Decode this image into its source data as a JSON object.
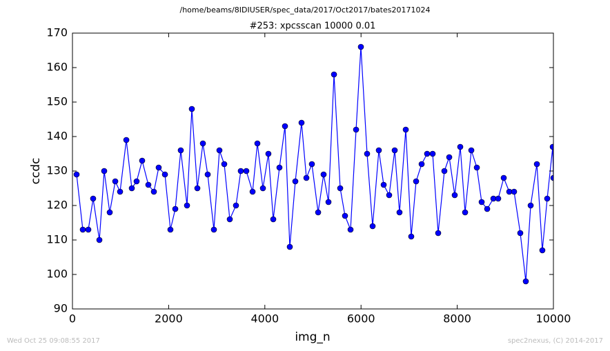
{
  "chart_data": {
    "type": "line",
    "suptitle": "/home/beams/8IDIUSER/spec_data/2017/Oct2017/bates20171024",
    "title": "#253: xpcsscan 10000 0.01",
    "x_label": "img_n",
    "y_label": "ccdc",
    "timestamp": "Wed Oct 25 09:08:55 2017",
    "credit": "spec2nexus, (C) 2014-2017",
    "x": [
      86,
      215,
      330,
      430,
      560,
      660,
      775,
      890,
      990,
      1120,
      1234,
      1334,
      1449,
      1578,
      1693,
      1793,
      1923,
      2037,
      2138,
      2252,
      2382,
      2482,
      2597,
      2712,
      2812,
      2941,
      3056,
      3156,
      3271,
      3400,
      3500,
      3615,
      3745,
      3845,
      3960,
      4074,
      4175,
      4304,
      4419,
      4519,
      4634,
      4763,
      4864,
      4978,
      5108,
      5222,
      5323,
      5438,
      5567,
      5667,
      5782,
      5897,
      5997,
      6126,
      6241,
      6370,
      6471,
      6585,
      6700,
      6800,
      6930,
      7044,
      7145,
      7260,
      7374,
      7489,
      7604,
      7733,
      7834,
      7948,
      8063,
      8164,
      8293,
      8408,
      8508,
      8623,
      8752,
      8852,
      8967,
      9082,
      9182,
      9311,
      9426,
      9527,
      9656,
      9770,
      9871,
      9986,
      10000
    ],
    "series": [
      {
        "name": "ccdc",
        "color": "#0000ff",
        "values": [
          129,
          113,
          113,
          122,
          110,
          130,
          118,
          127,
          124,
          139,
          125,
          127,
          133,
          126,
          124,
          131,
          129,
          113,
          119,
          136,
          120,
          148,
          125,
          138,
          129,
          113,
          136,
          132,
          116,
          120,
          130,
          130,
          124,
          138,
          125,
          135,
          116,
          131,
          143,
          108,
          127,
          144,
          128,
          132,
          118,
          129,
          121,
          158,
          125,
          117,
          113,
          142,
          166,
          135,
          114,
          136,
          126,
          123,
          136,
          118,
          142,
          111,
          127,
          132,
          135,
          135,
          112,
          130,
          134,
          123,
          137,
          118,
          136,
          131,
          121,
          119,
          122,
          122,
          128,
          124,
          124,
          112,
          98,
          120,
          132,
          107,
          122,
          137,
          128
        ]
      }
    ],
    "xlim": [
      0,
      10000
    ],
    "xticks": [
      0,
      2000,
      4000,
      6000,
      8000,
      10000
    ],
    "ylim": [
      90,
      170
    ],
    "yticks": [
      90,
      100,
      110,
      120,
      130,
      140,
      150,
      160,
      170
    ]
  }
}
